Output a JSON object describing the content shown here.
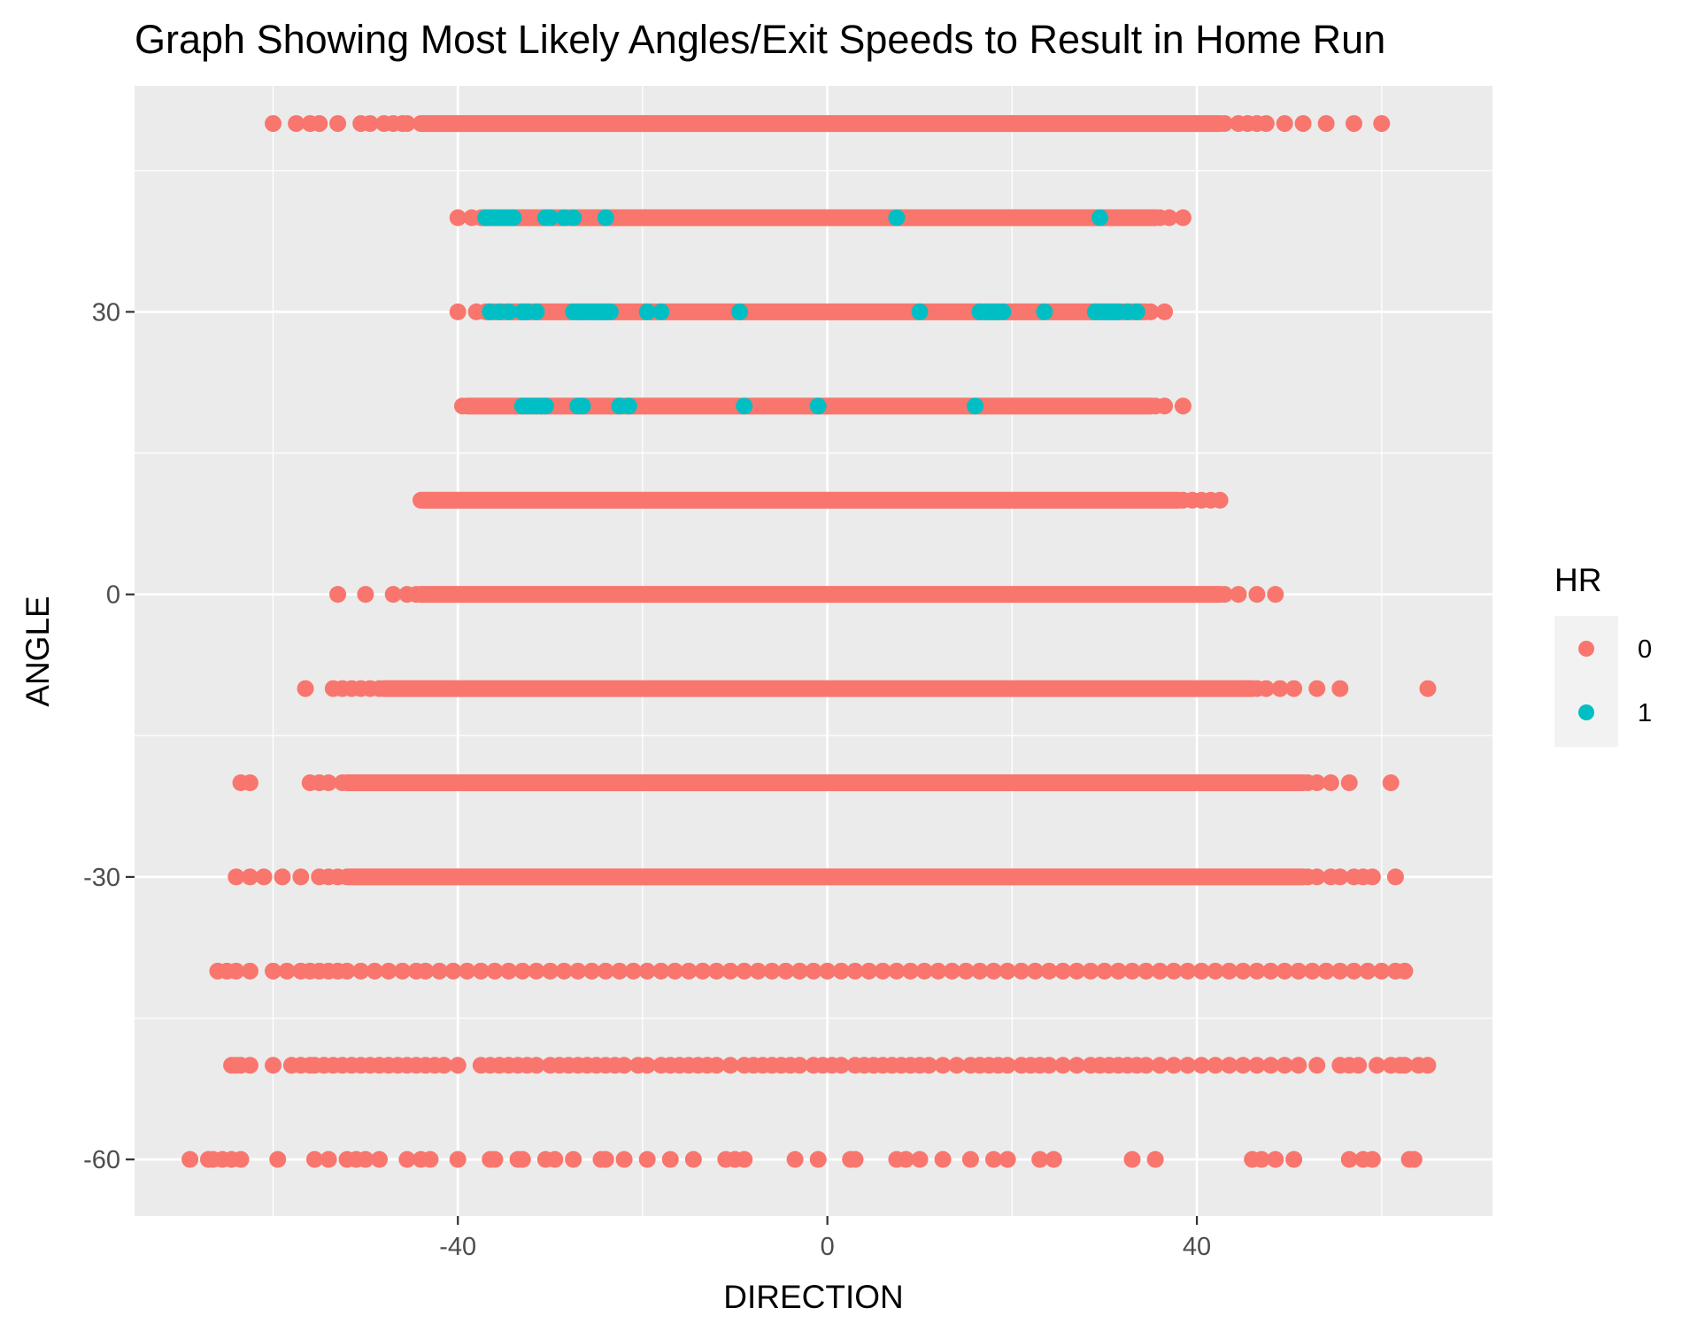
{
  "chart_data": {
    "type": "scatter",
    "title": "Graph Showing Most Likely Angles/Exit Speeds to Result in Home Run",
    "xlabel": "DIRECTION",
    "ylabel": "ANGLE",
    "xlim": [
      -75,
      72
    ],
    "ylim": [
      -66,
      54
    ],
    "x_ticks": [
      -40,
      0,
      40
    ],
    "x_tick_labels": [
      "-40",
      "0",
      "40"
    ],
    "y_ticks": [
      -60,
      -30,
      0,
      30
    ],
    "y_tick_labels": [
      "-60",
      "-30",
      "0",
      "30"
    ],
    "grid": true,
    "legend": {
      "title": "HR",
      "position": "right",
      "entries": [
        {
          "label": "0",
          "color": "#F8766D"
        },
        {
          "label": "1",
          "color": "#00BFC4"
        }
      ]
    },
    "colors": {
      "panel": "#EBEBEB",
      "grid": "#FFFFFF",
      "hr0": "#F8766D",
      "hr1": "#00BFC4"
    },
    "series": [
      {
        "name": "0",
        "rows": [
          {
            "y": 50,
            "sparse": [
              -60,
              -57.5,
              -56,
              -55,
              -53,
              -50.5,
              -49.5,
              -48,
              -47,
              -46,
              -45.5,
              43,
              44.5,
              45.5,
              46.5,
              47.5,
              49.5,
              51.5,
              54,
              57,
              60
            ],
            "dense": [
              -44,
              42.5
            ]
          },
          {
            "y": 40,
            "sparse": [
              -40,
              -38.5,
              36,
              37,
              38.5
            ],
            "dense": [
              -37.5,
              35.5
            ]
          },
          {
            "y": 30,
            "sparse": [
              -40,
              -38,
              35,
              36.5
            ],
            "dense": [
              -37,
              34.5
            ]
          },
          {
            "y": 20,
            "sparse": [
              -39.5,
              35.5,
              36.5,
              38.5
            ],
            "dense": [
              -39,
              35
            ]
          },
          {
            "y": 10,
            "sparse": [
              38.5,
              39.5,
              40.5,
              41.5,
              42.5
            ],
            "dense": [
              -44,
              38
            ]
          },
          {
            "y": 0,
            "sparse": [
              -53,
              -50,
              -47,
              -45.5,
              -44.5,
              43,
              44.5,
              46.5,
              48.5
            ],
            "dense": [
              -44,
              42.5
            ]
          },
          {
            "y": -10,
            "sparse": [
              -56.5,
              -53.5,
              -52.5,
              -51.5,
              -50.5,
              -49.5,
              -48.5,
              46.5,
              47.5,
              49,
              50.5,
              53,
              55.5,
              65
            ],
            "dense": [
              -48,
              46
            ]
          },
          {
            "y": -20,
            "sparse": [
              -63.5,
              -62.5,
              -56,
              -55,
              -54,
              -52.5,
              52,
              53,
              54.5,
              56.5,
              61
            ],
            "dense": [
              -52,
              51.5
            ]
          },
          {
            "y": -30,
            "sparse": [
              -64,
              -62.5,
              -61,
              -59,
              -57,
              -55,
              -54,
              -53,
              52,
              53,
              54.5,
              55.5,
              57,
              58,
              59,
              61.5
            ],
            "dense": [
              -52,
              51.5
            ]
          },
          {
            "y": -40,
            "sparse": [
              -66,
              -65,
              -64,
              -62.5,
              -60,
              -58.5,
              -57,
              -56,
              -55,
              -54,
              -53,
              -52,
              -50.5,
              -49,
              -47.5,
              -46,
              -44.5,
              -43.5,
              -42,
              -40.5,
              -39,
              -37.5,
              -36,
              -34.5,
              -33,
              -31.5,
              -30,
              -28.5,
              -27,
              -25.5,
              -24,
              -22.5,
              -21,
              -19.5,
              -18,
              -16.5,
              -15,
              -13.5,
              -12,
              -10.5,
              -9,
              -7.5,
              -6,
              -4.5,
              -3,
              -1.5,
              0,
              1.5,
              3,
              4.5,
              6,
              7.5,
              9,
              10.5,
              12,
              13.5,
              15,
              16.5,
              18,
              19.5,
              21,
              22.5,
              24,
              25.5,
              27,
              28.5,
              30,
              31.5,
              33,
              34.5,
              36,
              37.5,
              39,
              40.5,
              42,
              43.5,
              45,
              46.5,
              48,
              49.5,
              51,
              52.5,
              54,
              55.5,
              57,
              58.5,
              60,
              61.5,
              62.5
            ],
            "dense": []
          },
          {
            "y": -50,
            "sparse": [
              -64.5,
              -64,
              -63.5,
              -62.5,
              -60,
              -58,
              -57,
              -56,
              -55.5,
              -54.5,
              -53.5,
              -52.5,
              -51.5,
              -50.5,
              -49.5,
              -48.5,
              -47.5,
              -46.5,
              -45.5,
              -44.5,
              -43.5,
              -42.5,
              -41.5,
              -40,
              -37.5,
              -36.5,
              -35.5,
              -34.5,
              -33.5,
              -32.5,
              -31.5,
              -30,
              -29,
              -28,
              -27,
              -26,
              -25,
              -24,
              -23,
              -22,
              -20.5,
              -19.5,
              -18,
              -17,
              -16,
              -15,
              -14,
              -13,
              -12,
              -10.5,
              -9,
              -8,
              -7,
              -6,
              -5,
              -4,
              -3,
              -1.5,
              -0.5,
              0.5,
              1.5,
              3,
              4,
              5,
              6,
              7,
              8,
              9,
              10,
              11,
              12.5,
              14,
              15.5,
              16.5,
              17.5,
              18.5,
              19.5,
              21,
              22,
              23,
              24,
              25.5,
              27,
              28.5,
              29.5,
              30.5,
              31.5,
              32.5,
              33.5,
              34.5,
              36,
              37.5,
              39,
              40.5,
              42,
              43.5,
              45,
              46.5,
              48,
              49.5,
              51,
              53,
              55.5,
              56.5,
              57.5,
              59.5,
              61,
              62,
              62.5,
              64,
              65
            ],
            "dense": []
          },
          {
            "y": -60,
            "sparse": [
              -69,
              -67,
              -66.5,
              -65.5,
              -64.5,
              -63.5,
              -59.5,
              -55.5,
              -54,
              -52,
              -51,
              -50,
              -48.5,
              -45.5,
              -44,
              -43,
              -40,
              -36.5,
              -36,
              -33.5,
              -33,
              -30.5,
              -29.5,
              -27.5,
              -24.5,
              -24,
              -22,
              -19.5,
              -17,
              -14.5,
              -11,
              -10,
              -9,
              -3.5,
              -1,
              2.5,
              3,
              7.5,
              8.5,
              10,
              12.5,
              15.5,
              18,
              19.5,
              23,
              24.5,
              33,
              35.5,
              46,
              47,
              48.5,
              50.5,
              56.5,
              58,
              59,
              63,
              63.5
            ],
            "dense": []
          }
        ]
      },
      {
        "name": "1",
        "rows": [
          {
            "y": 40,
            "sparse": [
              -37,
              -36.5,
              -36,
              -35.5,
              -35,
              -34.5,
              -34,
              -30.5,
              -30,
              -28.5,
              -27.5,
              -24,
              7.5,
              29.5
            ],
            "dense": []
          },
          {
            "y": 30,
            "sparse": [
              -36.5,
              -35.5,
              -34.5,
              -33,
              -32.5,
              -31.5,
              -27.5,
              -27,
              -26.5,
              -26,
              -25.5,
              -25,
              -24.5,
              -24,
              -23.5,
              -19.5,
              -18,
              -9.5,
              10,
              16.5,
              17,
              17.5,
              18,
              18.5,
              19,
              23.5,
              29,
              29.5,
              30,
              30.5,
              31,
              31.5,
              32.5,
              33.5
            ],
            "dense": []
          },
          {
            "y": 20,
            "sparse": [
              -33,
              -32.5,
              -32,
              -31.5,
              -31,
              -30.5,
              -27,
              -26.5,
              -22.5,
              -21.5,
              -9,
              -1,
              16
            ],
            "dense": []
          }
        ]
      }
    ]
  }
}
